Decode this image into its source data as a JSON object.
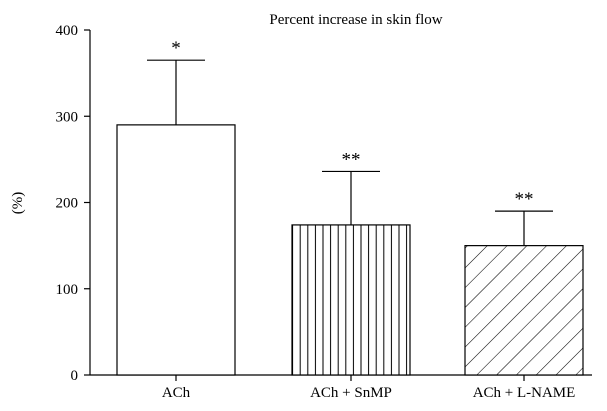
{
  "chart_data": {
    "type": "bar",
    "title": "Percent increase in skin flow",
    "ylabel": "(%)",
    "xlabel": "",
    "ylim": [
      0,
      400
    ],
    "yticks": [
      0,
      100,
      200,
      300,
      400
    ],
    "grid": false,
    "categories": [
      "ACh",
      "ACh + SnMP",
      "ACh + L-NAME"
    ],
    "values": [
      290,
      174,
      150
    ],
    "error_upper": [
      365,
      236,
      190
    ],
    "annotations": [
      "*",
      "**",
      "**"
    ],
    "fill_patterns": [
      "none",
      "vertical-lines",
      "diagonal-lines"
    ],
    "colors": {
      "bar_stroke": "#000000",
      "bar_fill": "#ffffff"
    }
  }
}
